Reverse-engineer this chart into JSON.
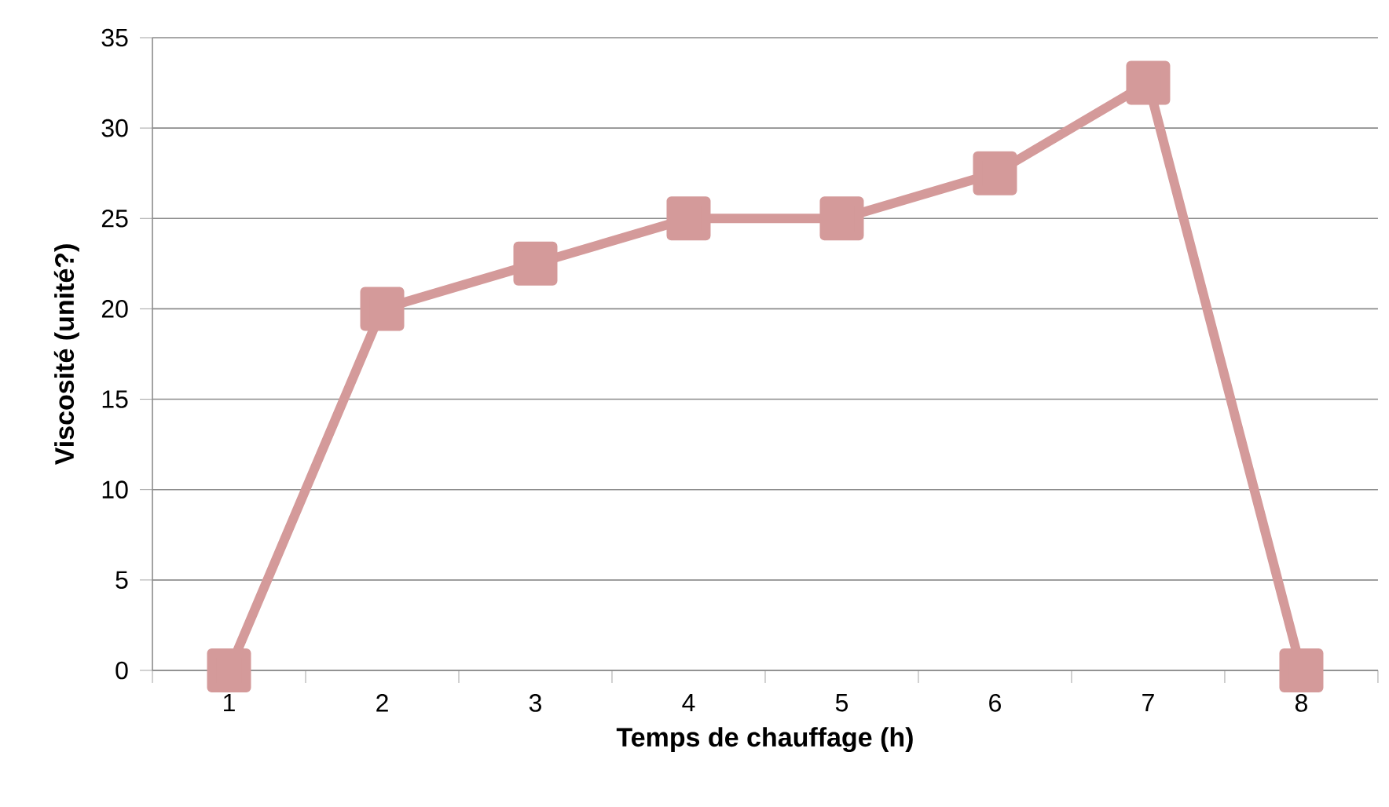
{
  "chart_data": {
    "type": "line",
    "xlabel": "Temps de chauffage (h)",
    "ylabel": "Viscosité (unité?)",
    "categories": [
      "1",
      "2",
      "3",
      "4",
      "5",
      "6",
      "7",
      "8"
    ],
    "series": [
      {
        "color": "#d49a9a",
        "values": [
          0,
          20,
          22.5,
          25,
          25,
          27.5,
          32.5,
          0
        ]
      }
    ],
    "ylim": [
      0,
      35
    ],
    "yticks": [
      0,
      5,
      10,
      15,
      20,
      25,
      30,
      35
    ],
    "grid": "y",
    "marker": "square",
    "line_style": "solid"
  }
}
